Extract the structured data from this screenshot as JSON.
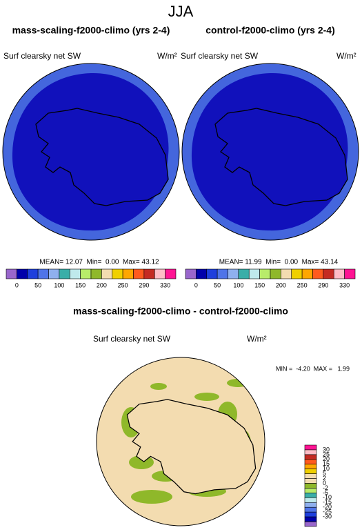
{
  "title": "JJA",
  "panels": [
    {
      "title": "mass-scaling-f2000-climo (yrs 2-4)",
      "variable": "Surf clearsky net SW",
      "units": "W/m²",
      "stats": "MEAN= 12.07  Min=  0.00  Max= 43.12"
    },
    {
      "title": "control-f2000-climo (yrs 2-4)",
      "variable": "Surf clearsky net SW",
      "units": "W/m²",
      "stats": "MEAN= 11.99  Min=  0.00  Max= 43.14"
    }
  ],
  "colorbar": {
    "labels": [
      "0",
      "50",
      "100",
      "150",
      "200",
      "250",
      "290",
      "330"
    ],
    "colors": [
      "#9966cc",
      "#0000aa",
      "#1e3fdd",
      "#4f74e8",
      "#8fb0ee",
      "#3aaea8",
      "#bfe9ec",
      "#b8ec6a",
      "#8fb82a",
      "#f3dcb0",
      "#f0d000",
      "#ffa600",
      "#ff5a1e",
      "#c42a22",
      "#ffbcc6",
      "#ff1493"
    ]
  },
  "difference": {
    "title": "mass-scaling-f2000-climo - control-f2000-climo",
    "variable": "Surf clearsky net SW",
    "units": "W/m²",
    "stats": "MIN =  -4.20  MAX =   1.99",
    "colorbar": {
      "labels": [
        "30",
        "25",
        "20",
        "15",
        "10",
        "5",
        "2",
        "0",
        "-2",
        "-5",
        "-10",
        "-15",
        "-20",
        "-25",
        "-30"
      ],
      "colors": [
        "#ff1493",
        "#ffbcc6",
        "#c42a22",
        "#ff5a1e",
        "#ffa600",
        "#f0d000",
        "#f3dcb0",
        "#f3dcb0",
        "#8fb82a",
        "#b8ec6a",
        "#3aaea8",
        "#bfe9ec",
        "#8fb0ee",
        "#4f74e8",
        "#1e3fdd",
        "#0000aa",
        "#9966cc"
      ]
    }
  }
}
